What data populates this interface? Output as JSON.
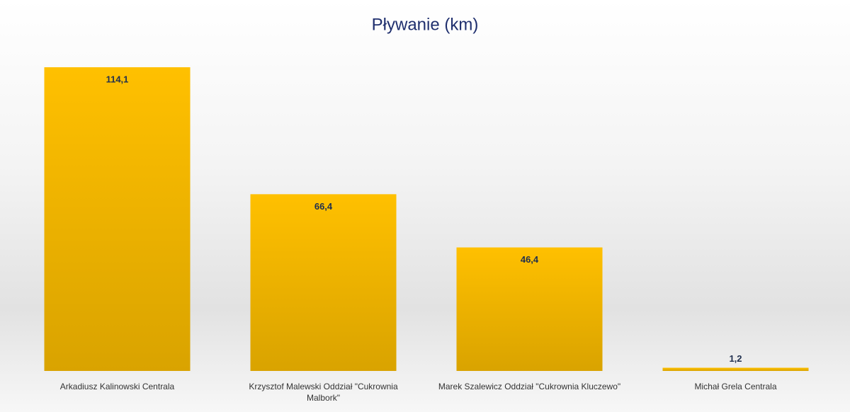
{
  "chart_data": {
    "type": "bar",
    "title": "Pływanie (km)",
    "categories": [
      "Arkadiusz Kalinowski Centrala",
      "Krzysztof Malewski Oddział \"Cukrownia Malbork\"",
      "Marek Szalewicz Oddział \"Cukrownia Kluczewo\"",
      "Michał Grela Centrala"
    ],
    "values": [
      114.1,
      66.4,
      46.4,
      1.2
    ],
    "value_labels": [
      "114,1",
      "66,4",
      "46,4",
      "1,2"
    ],
    "color": "#ffc000"
  }
}
